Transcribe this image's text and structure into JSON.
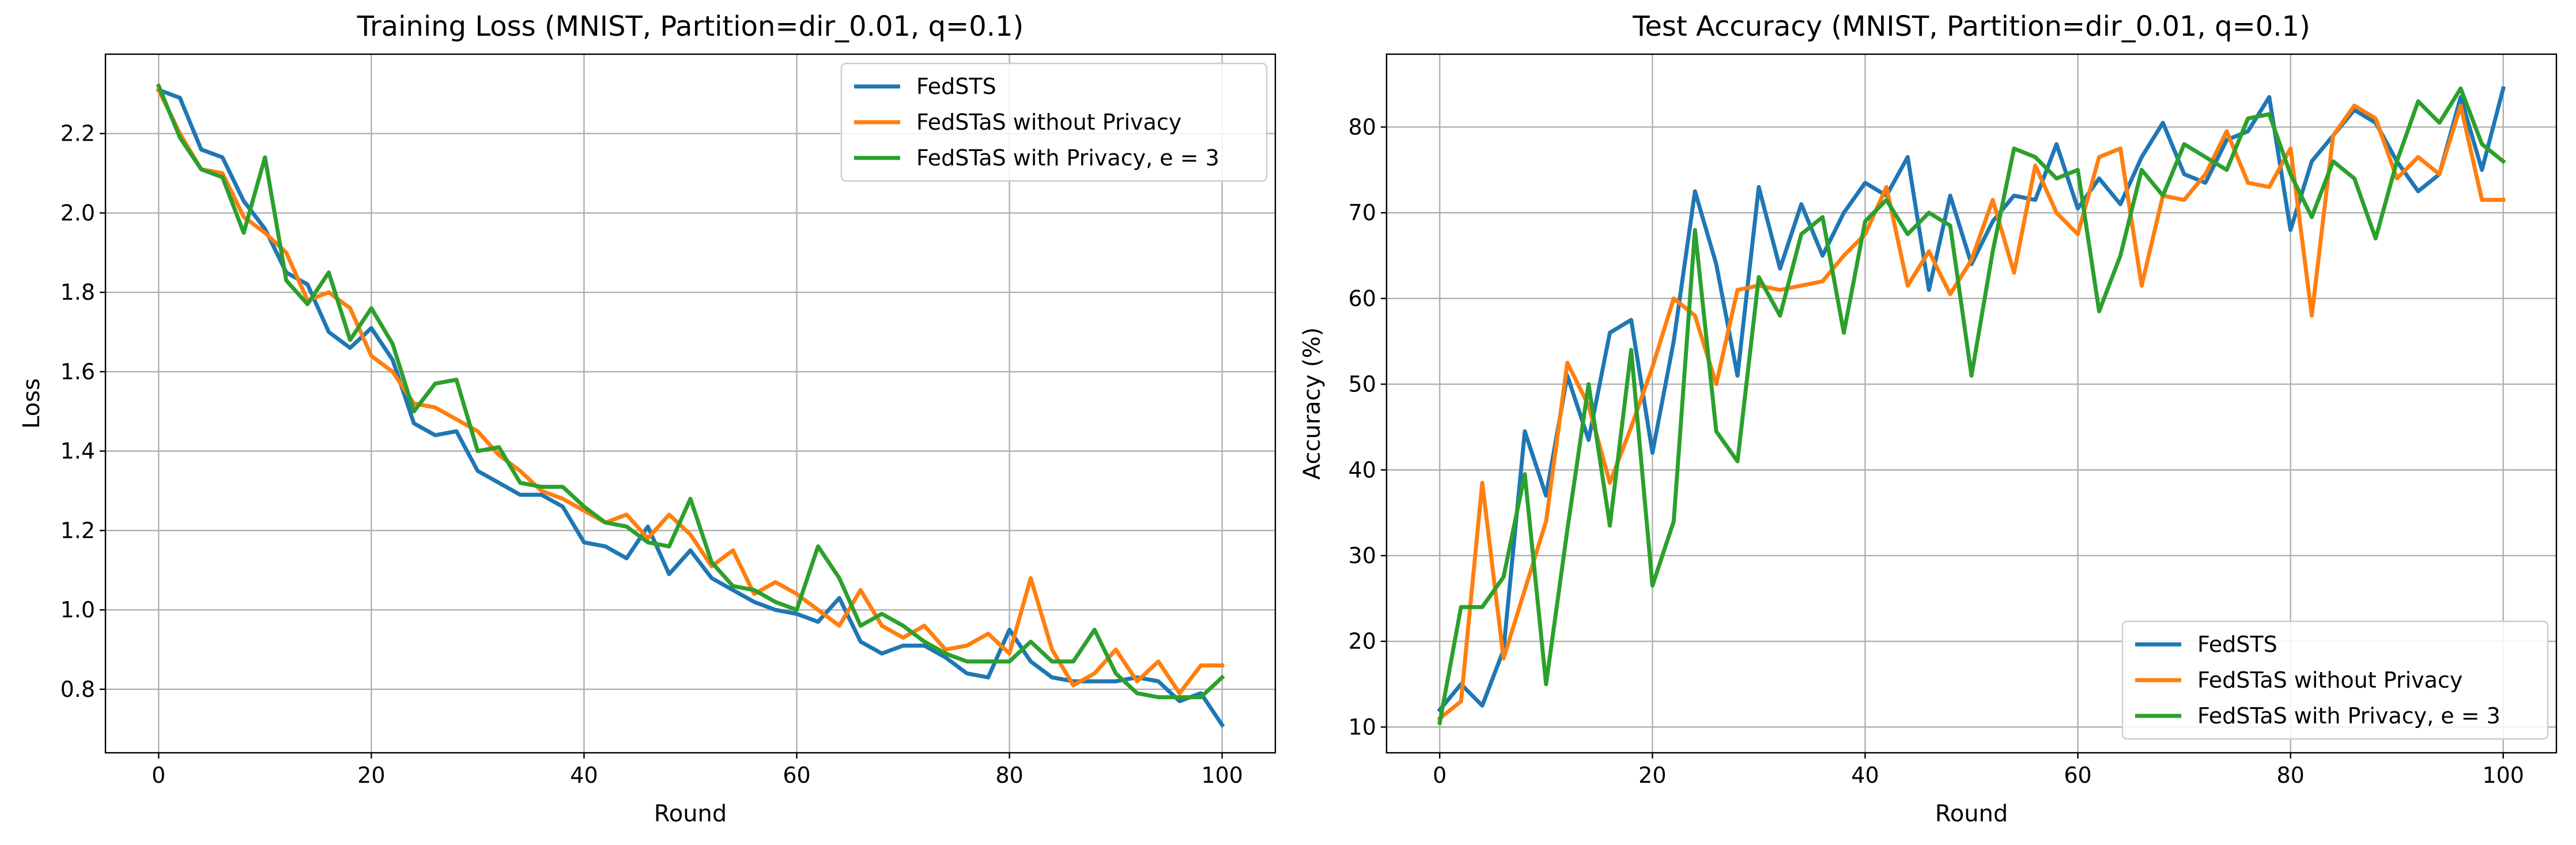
{
  "chart_data": [
    {
      "type": "line",
      "title": "Training Loss (MNIST, Partition=dir_0.01, q=0.1)",
      "xlabel": "Round",
      "ylabel": "Loss",
      "xlim": [
        -5,
        105
      ],
      "ylim": [
        0.64,
        2.4
      ],
      "xticks": [
        0,
        20,
        40,
        60,
        80,
        100
      ],
      "yticks": [
        0.8,
        1.0,
        1.2,
        1.4,
        1.6,
        1.8,
        2.0,
        2.2
      ],
      "ytick_decimals": 1,
      "grid": true,
      "legend_position": "upper right",
      "x": [
        0,
        2,
        4,
        6,
        8,
        10,
        12,
        14,
        16,
        18,
        20,
        22,
        24,
        26,
        28,
        30,
        32,
        34,
        36,
        38,
        40,
        42,
        44,
        46,
        48,
        50,
        52,
        54,
        56,
        58,
        60,
        62,
        64,
        66,
        68,
        70,
        72,
        74,
        76,
        78,
        80,
        82,
        84,
        86,
        88,
        90,
        92,
        94,
        96,
        98,
        100
      ],
      "series": [
        {
          "name": "FedSTS",
          "color": "#1f77b4",
          "values": [
            2.31,
            2.29,
            2.16,
            2.14,
            2.03,
            1.96,
            1.85,
            1.82,
            1.7,
            1.66,
            1.71,
            1.63,
            1.47,
            1.44,
            1.45,
            1.35,
            1.32,
            1.29,
            1.29,
            1.26,
            1.17,
            1.16,
            1.13,
            1.21,
            1.09,
            1.15,
            1.08,
            1.05,
            1.02,
            1.0,
            0.99,
            0.97,
            1.03,
            0.92,
            0.89,
            0.91,
            0.91,
            0.88,
            0.84,
            0.83,
            0.95,
            0.87,
            0.83,
            0.82,
            0.82,
            0.82,
            0.83,
            0.82,
            0.77,
            0.79,
            0.71
          ]
        },
        {
          "name": "FedSTaS without Privacy",
          "color": "#ff7f0e",
          "values": [
            2.31,
            2.2,
            2.11,
            2.1,
            1.99,
            1.95,
            1.9,
            1.78,
            1.8,
            1.76,
            1.64,
            1.6,
            1.52,
            1.51,
            1.48,
            1.45,
            1.39,
            1.35,
            1.3,
            1.28,
            1.25,
            1.22,
            1.24,
            1.18,
            1.24,
            1.19,
            1.11,
            1.15,
            1.04,
            1.07,
            1.04,
            1.0,
            0.96,
            1.05,
            0.96,
            0.93,
            0.96,
            0.9,
            0.91,
            0.94,
            0.89,
            1.08,
            0.9,
            0.81,
            0.84,
            0.9,
            0.82,
            0.87,
            0.79,
            0.86,
            0.86
          ]
        },
        {
          "name": "FedSTaS with Privacy, e = 3",
          "color": "#2ca02c",
          "values": [
            2.32,
            2.19,
            2.11,
            2.09,
            1.95,
            2.14,
            1.83,
            1.77,
            1.85,
            1.68,
            1.76,
            1.67,
            1.5,
            1.57,
            1.58,
            1.4,
            1.41,
            1.32,
            1.31,
            1.31,
            1.26,
            1.22,
            1.21,
            1.17,
            1.16,
            1.28,
            1.12,
            1.06,
            1.05,
            1.02,
            1.0,
            1.16,
            1.08,
            0.96,
            0.99,
            0.96,
            0.92,
            0.89,
            0.87,
            0.87,
            0.87,
            0.92,
            0.87,
            0.87,
            0.95,
            0.84,
            0.79,
            0.78,
            0.78,
            0.78,
            0.83
          ]
        }
      ]
    },
    {
      "type": "line",
      "title": "Test Accuracy (MNIST, Partition=dir_0.01, q=0.1)",
      "xlabel": "Round",
      "ylabel": "Accuracy (%)",
      "xlim": [
        -5,
        105
      ],
      "ylim": [
        7,
        88.5
      ],
      "xticks": [
        0,
        20,
        40,
        60,
        80,
        100
      ],
      "yticks": [
        10,
        20,
        30,
        40,
        50,
        60,
        70,
        80
      ],
      "ytick_decimals": 0,
      "grid": true,
      "legend_position": "lower right",
      "x": [
        0,
        2,
        4,
        6,
        8,
        10,
        12,
        14,
        16,
        18,
        20,
        22,
        24,
        26,
        28,
        30,
        32,
        34,
        36,
        38,
        40,
        42,
        44,
        46,
        48,
        50,
        52,
        54,
        56,
        58,
        60,
        62,
        64,
        66,
        68,
        70,
        72,
        74,
        76,
        78,
        80,
        82,
        84,
        86,
        88,
        90,
        92,
        94,
        96,
        98,
        100
      ],
      "series": [
        {
          "name": "FedSTS",
          "color": "#1f77b4",
          "values": [
            12,
            15,
            12.5,
            19,
            44.5,
            37,
            51,
            43.5,
            56,
            57.5,
            42,
            55,
            72.5,
            64,
            51,
            73,
            63.5,
            71,
            65,
            70,
            73.5,
            72,
            76.5,
            61,
            72,
            64,
            69,
            72,
            71.5,
            78,
            70.5,
            74,
            71,
            76.5,
            80.5,
            74.5,
            73.5,
            78.5,
            79.5,
            83.5,
            68,
            76,
            79,
            82,
            80.5,
            76,
            72.5,
            74.5,
            83.5,
            75,
            84.5
          ]
        },
        {
          "name": "FedSTaS without Privacy",
          "color": "#ff7f0e",
          "values": [
            11,
            13,
            38.5,
            18,
            26,
            34,
            52.5,
            47.5,
            38.5,
            45,
            52,
            60,
            58,
            50,
            61,
            61.5,
            61,
            61.5,
            62,
            65,
            67.5,
            73,
            61.5,
            65.5,
            60.5,
            64.5,
            71.5,
            63,
            75.5,
            70,
            67.5,
            76.5,
            77.5,
            61.5,
            72,
            71.5,
            74.5,
            79.5,
            73.5,
            73,
            77.5,
            58,
            79,
            82.5,
            81,
            74,
            76.5,
            74.5,
            82.5,
            71.5,
            71.5
          ]
        },
        {
          "name": "FedSTaS with Privacy, e = 3",
          "color": "#2ca02c",
          "values": [
            10.5,
            24,
            24,
            27.5,
            39.5,
            15,
            33,
            50,
            33.5,
            54,
            26.5,
            34,
            68,
            44.5,
            41,
            62.5,
            58,
            67.5,
            69.5,
            56,
            69,
            71.5,
            67.5,
            70,
            68.5,
            51,
            65.5,
            77.5,
            76.5,
            74,
            75,
            58.5,
            65,
            75,
            72,
            78,
            76.5,
            75,
            81,
            81.5,
            74.5,
            69.5,
            76,
            74,
            67,
            76,
            83,
            80.5,
            84.5,
            78,
            76
          ]
        }
      ]
    }
  ]
}
